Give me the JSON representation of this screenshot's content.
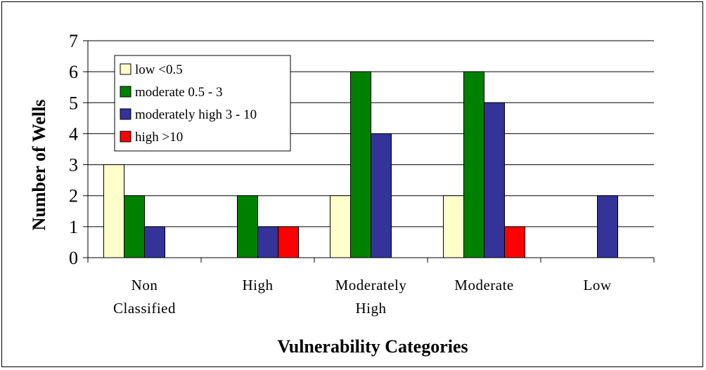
{
  "chart_data": {
    "type": "bar",
    "title": "",
    "xlabel": "Vulnerability Categories",
    "ylabel": "Number of Wells",
    "ylim": [
      0,
      7
    ],
    "yticks": [
      "0",
      "1",
      "2",
      "3",
      "4",
      "5",
      "6",
      "7"
    ],
    "categories": [
      [
        "Non",
        "Classified"
      ],
      [
        "High"
      ],
      [
        "Moderately",
        "High"
      ],
      [
        "Moderate"
      ],
      [
        "Low"
      ]
    ],
    "series": [
      {
        "name": "low <0.5",
        "color": "#ffffcc",
        "values": [
          3,
          0,
          2,
          2,
          0
        ]
      },
      {
        "name": "moderate 0.5 - 3",
        "color": "#008000",
        "values": [
          2,
          2,
          6,
          6,
          0
        ]
      },
      {
        "name": "moderately high 3 - 10",
        "color": "#333399",
        "values": [
          1,
          1,
          4,
          5,
          2
        ]
      },
      {
        "name": "high >10",
        "color": "#ff0000",
        "values": [
          0,
          1,
          0,
          1,
          0
        ]
      }
    ],
    "grid": true,
    "legend_position": "top-left"
  }
}
